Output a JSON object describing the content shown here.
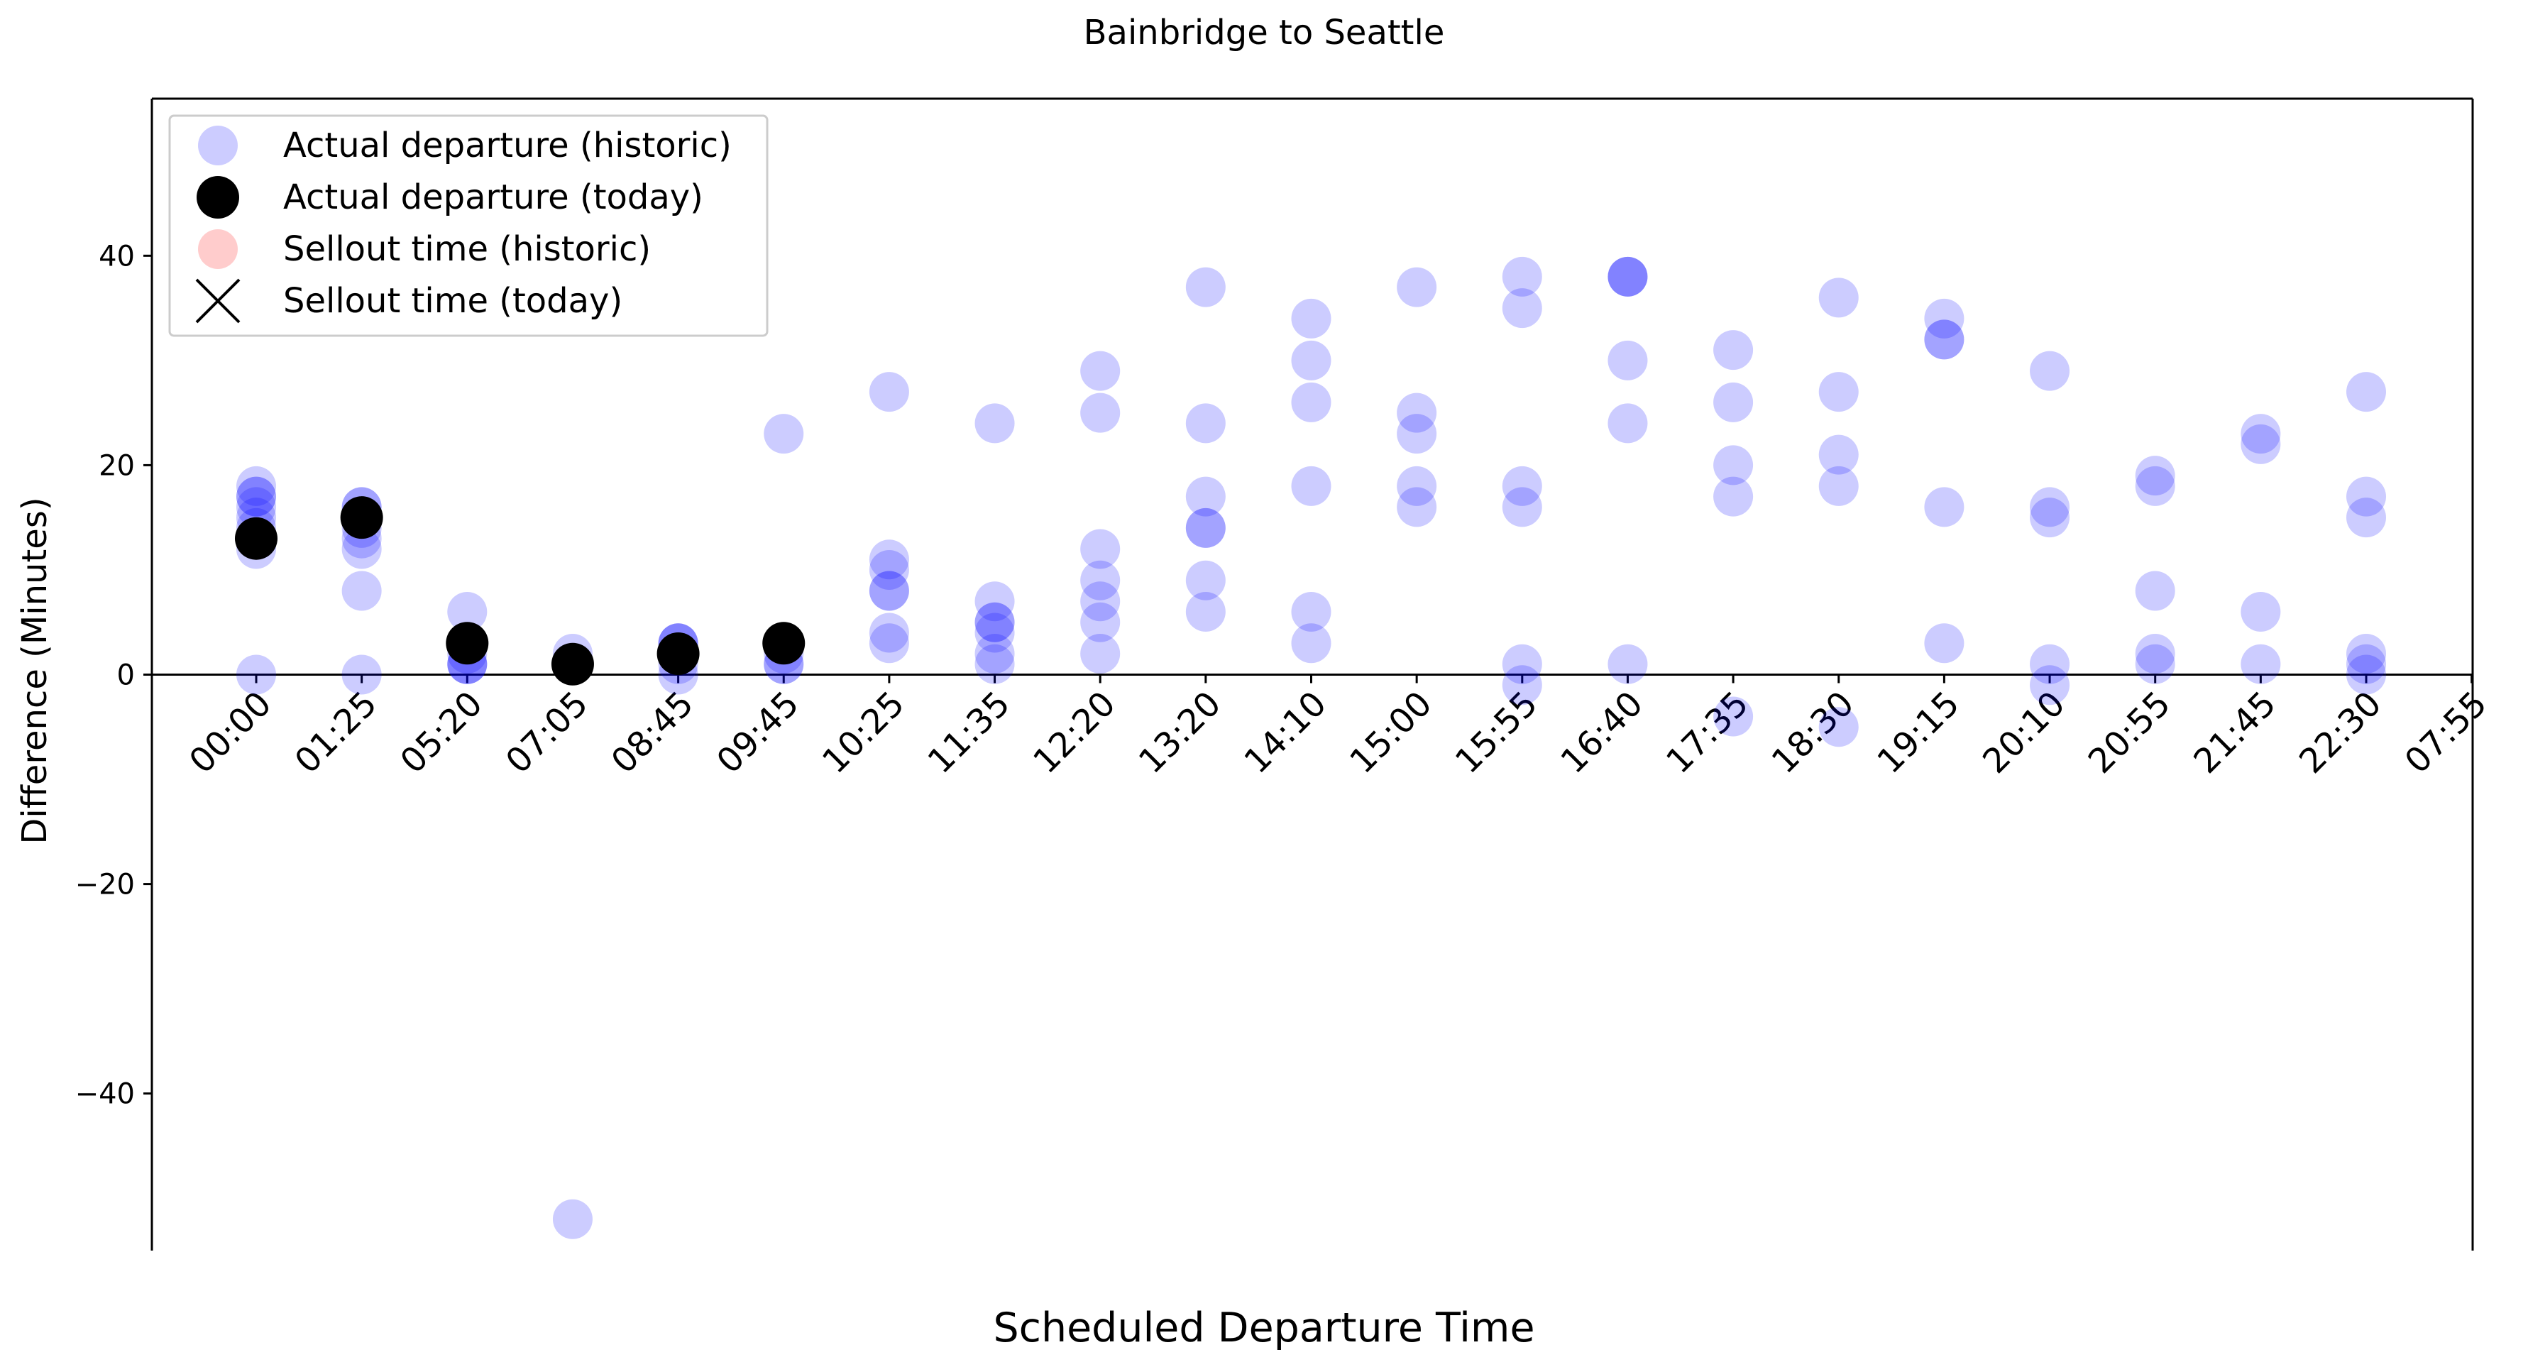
{
  "chart_data": {
    "type": "scatter",
    "title": "Bainbridge to Seattle",
    "xlabel": "Scheduled Departure Time",
    "ylabel": "Difference (Minutes)",
    "categories": [
      "00:00",
      "01:25",
      "05:20",
      "07:05",
      "08:45",
      "09:45",
      "10:25",
      "11:35",
      "12:20",
      "13:20",
      "14:10",
      "15:00",
      "15:55",
      "16:40",
      "17:35",
      "18:30",
      "19:15",
      "20:10",
      "20:55",
      "21:45",
      "22:30",
      "07:55"
    ],
    "ylim": [
      -55,
      55
    ],
    "yticks": [
      -40,
      -20,
      0,
      20,
      40
    ],
    "zero_line": true,
    "grid": false,
    "legend_position": "upper-left",
    "legend": [
      {
        "label": "Actual departure (historic)",
        "marker": "circle",
        "color": "#0000ff",
        "alpha": 0.2
      },
      {
        "label": "Actual departure (today)",
        "marker": "circle",
        "color": "#000000",
        "alpha": 1
      },
      {
        "label": "Sellout time (historic)",
        "marker": "circle",
        "color": "#ff0000",
        "alpha": 0.2
      },
      {
        "label": "Sellout time (today)",
        "marker": "x",
        "color": "#000000",
        "alpha": 1
      }
    ],
    "series": [
      {
        "name": "Actual departure (historic)",
        "color": "#0000ff",
        "alpha": 0.2,
        "points": [
          [
            "00:00",
            18
          ],
          [
            "00:00",
            17
          ],
          [
            "00:00",
            17
          ],
          [
            "00:00",
            16
          ],
          [
            "00:00",
            15
          ],
          [
            "00:00",
            14
          ],
          [
            "00:00",
            13
          ],
          [
            "00:00",
            12
          ],
          [
            "00:00",
            0
          ],
          [
            "01:25",
            16
          ],
          [
            "01:25",
            16
          ],
          [
            "01:25",
            15
          ],
          [
            "01:25",
            14
          ],
          [
            "01:25",
            13
          ],
          [
            "01:25",
            12
          ],
          [
            "01:25",
            8
          ],
          [
            "01:25",
            0
          ],
          [
            "05:20",
            6
          ],
          [
            "05:20",
            3
          ],
          [
            "05:20",
            2
          ],
          [
            "05:20",
            1
          ],
          [
            "05:20",
            1
          ],
          [
            "05:20",
            1
          ],
          [
            "07:05",
            2
          ],
          [
            "07:05",
            1
          ],
          [
            "07:05",
            1
          ],
          [
            "07:05",
            -52
          ],
          [
            "08:45",
            3
          ],
          [
            "08:45",
            3
          ],
          [
            "08:45",
            3
          ],
          [
            "08:45",
            2
          ],
          [
            "08:45",
            2
          ],
          [
            "08:45",
            1
          ],
          [
            "08:45",
            0
          ],
          [
            "09:45",
            23
          ],
          [
            "09:45",
            3
          ],
          [
            "09:45",
            2
          ],
          [
            "09:45",
            1
          ],
          [
            "09:45",
            1
          ],
          [
            "10:25",
            27
          ],
          [
            "10:25",
            11
          ],
          [
            "10:25",
            10
          ],
          [
            "10:25",
            8
          ],
          [
            "10:25",
            8
          ],
          [
            "10:25",
            4
          ],
          [
            "10:25",
            3
          ],
          [
            "11:35",
            24
          ],
          [
            "11:35",
            7
          ],
          [
            "11:35",
            5
          ],
          [
            "11:35",
            5
          ],
          [
            "11:35",
            4
          ],
          [
            "11:35",
            2
          ],
          [
            "11:35",
            1
          ],
          [
            "12:20",
            29
          ],
          [
            "12:20",
            25
          ],
          [
            "12:20",
            12
          ],
          [
            "12:20",
            9
          ],
          [
            "12:20",
            7
          ],
          [
            "12:20",
            5
          ],
          [
            "12:20",
            2
          ],
          [
            "13:20",
            37
          ],
          [
            "13:20",
            24
          ],
          [
            "13:20",
            17
          ],
          [
            "13:20",
            14
          ],
          [
            "13:20",
            14
          ],
          [
            "13:20",
            9
          ],
          [
            "13:20",
            6
          ],
          [
            "14:10",
            34
          ],
          [
            "14:10",
            30
          ],
          [
            "14:10",
            26
          ],
          [
            "14:10",
            18
          ],
          [
            "14:10",
            6
          ],
          [
            "14:10",
            3
          ],
          [
            "15:00",
            37
          ],
          [
            "15:00",
            25
          ],
          [
            "15:00",
            23
          ],
          [
            "15:00",
            18
          ],
          [
            "15:00",
            16
          ],
          [
            "15:55",
            38
          ],
          [
            "15:55",
            35
          ],
          [
            "15:55",
            18
          ],
          [
            "15:55",
            16
          ],
          [
            "15:55",
            1
          ],
          [
            "15:55",
            -1
          ],
          [
            "16:40",
            38
          ],
          [
            "16:40",
            38
          ],
          [
            "16:40",
            38
          ],
          [
            "16:40",
            30
          ],
          [
            "16:40",
            24
          ],
          [
            "16:40",
            1
          ],
          [
            "17:35",
            31
          ],
          [
            "17:35",
            26
          ],
          [
            "17:35",
            20
          ],
          [
            "17:35",
            17
          ],
          [
            "17:35",
            -4
          ],
          [
            "18:30",
            36
          ],
          [
            "18:30",
            27
          ],
          [
            "18:30",
            21
          ],
          [
            "18:30",
            18
          ],
          [
            "18:30",
            -5
          ],
          [
            "19:15",
            34
          ],
          [
            "19:15",
            32
          ],
          [
            "19:15",
            32
          ],
          [
            "19:15",
            16
          ],
          [
            "19:15",
            3
          ],
          [
            "20:10",
            29
          ],
          [
            "20:10",
            16
          ],
          [
            "20:10",
            15
          ],
          [
            "20:10",
            1
          ],
          [
            "20:10",
            -1
          ],
          [
            "20:55",
            19
          ],
          [
            "20:55",
            18
          ],
          [
            "20:55",
            8
          ],
          [
            "20:55",
            2
          ],
          [
            "20:55",
            1
          ],
          [
            "21:45",
            23
          ],
          [
            "21:45",
            22
          ],
          [
            "21:45",
            6
          ],
          [
            "21:45",
            1
          ],
          [
            "22:30",
            27
          ],
          [
            "22:30",
            17
          ],
          [
            "22:30",
            15
          ],
          [
            "22:30",
            2
          ],
          [
            "22:30",
            1
          ],
          [
            "22:30",
            0
          ]
        ]
      },
      {
        "name": "Actual departure (today)",
        "color": "#000000",
        "alpha": 1,
        "points": [
          [
            "00:00",
            13
          ],
          [
            "01:25",
            15
          ],
          [
            "05:20",
            3
          ],
          [
            "07:05",
            1
          ],
          [
            "08:45",
            2
          ],
          [
            "09:45",
            3
          ]
        ]
      },
      {
        "name": "Sellout time (historic)",
        "color": "#ff0000",
        "alpha": 0.2,
        "points": []
      },
      {
        "name": "Sellout time (today)",
        "color": "#000000",
        "alpha": 1,
        "points": []
      }
    ]
  }
}
